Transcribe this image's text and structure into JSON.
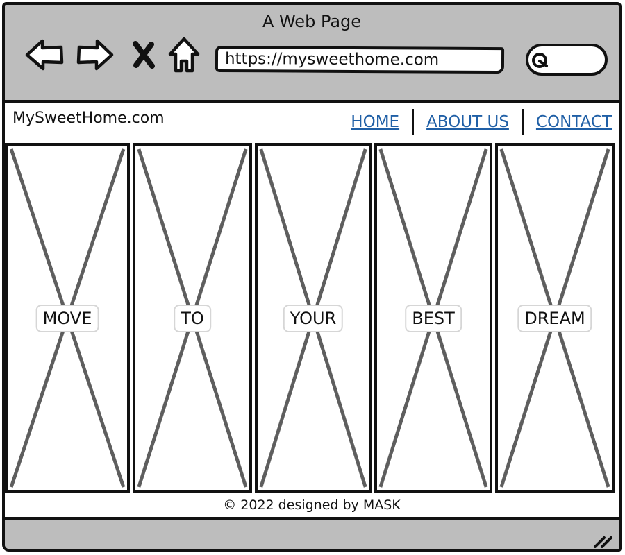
{
  "window": {
    "title": "A Web Page"
  },
  "toolbar": {
    "icons": [
      "back-arrow-icon",
      "forward-arrow-icon",
      "close-icon",
      "home-icon"
    ],
    "url": "https://mysweethome.com",
    "search_icon": "magnifier-icon"
  },
  "site": {
    "brand": "MySweetHome.com",
    "nav": [
      {
        "label": "HOME"
      },
      {
        "label": "ABOUT US"
      },
      {
        "label": "CONTACT"
      }
    ],
    "link_color": "#1f5fa6"
  },
  "gallery": {
    "tiles": [
      {
        "label": "MOVE"
      },
      {
        "label": "TO"
      },
      {
        "label": "YOUR"
      },
      {
        "label": "BEST"
      },
      {
        "label": "DREAM"
      }
    ]
  },
  "footer": {
    "text": "© 2022 designed by MASK"
  },
  "colors": {
    "chrome": "#bdbdbd",
    "ink": "#111111",
    "placeholder_cross": "#5e5e5e"
  }
}
